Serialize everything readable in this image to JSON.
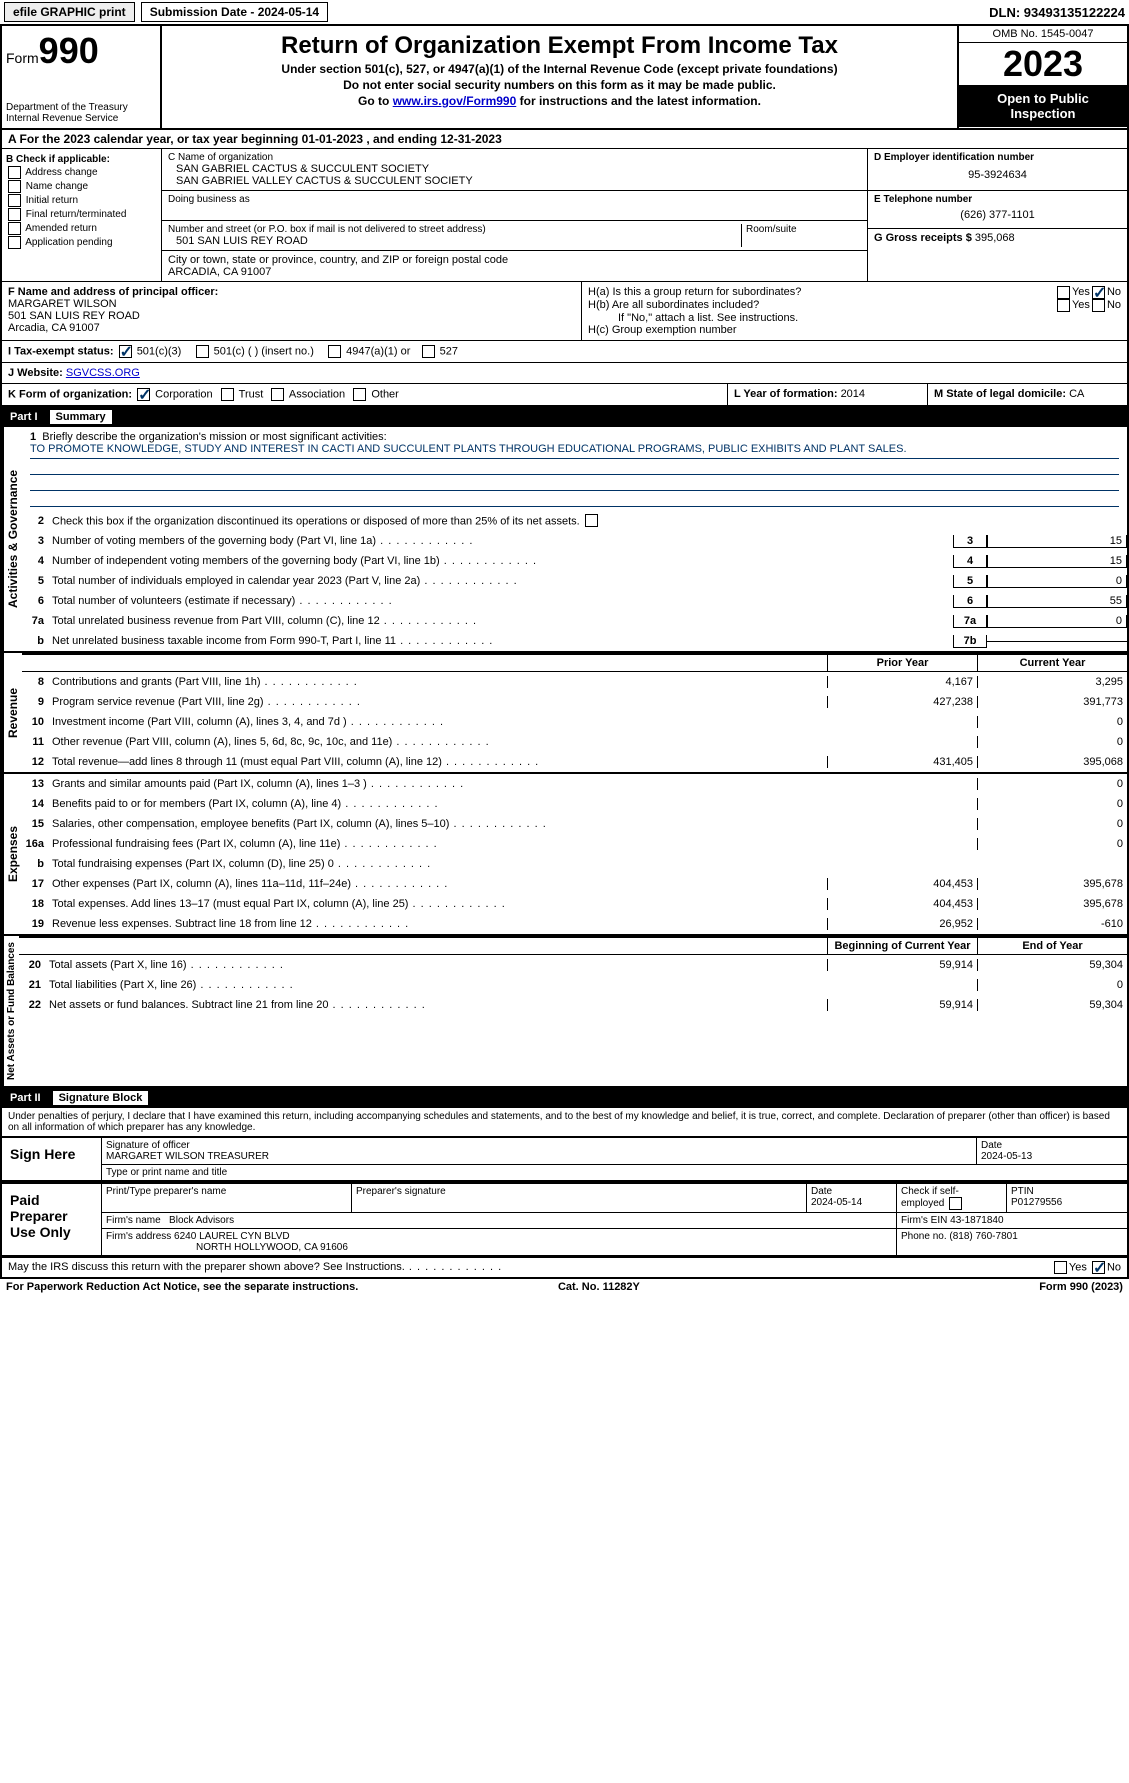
{
  "topbar": {
    "efile": "efile GRAPHIC print",
    "submission": "Submission Date - 2024-05-14",
    "dln": "DLN: 93493135122224"
  },
  "header": {
    "form_word": "Form",
    "form_num": "990",
    "dept": "Department of the Treasury\nInternal Revenue Service",
    "title": "Return of Organization Exempt From Income Tax",
    "sub1": "Under section 501(c), 527, or 4947(a)(1) of the Internal Revenue Code (except private foundations)",
    "sub2": "Do not enter social security numbers on this form as it may be made public.",
    "sub3_pre": "Go to ",
    "sub3_link": "www.irs.gov/Form990",
    "sub3_post": " for instructions and the latest information.",
    "omb": "OMB No. 1545-0047",
    "year": "2023",
    "inspect": "Open to Public Inspection"
  },
  "row_a": "A For the 2023 calendar year, or tax year beginning 01-01-2023   , and ending 12-31-2023",
  "box_b": {
    "title": "B Check if applicable:",
    "items": [
      "Address change",
      "Name change",
      "Initial return",
      "Final return/terminated",
      "Amended return",
      "Application pending"
    ]
  },
  "box_c": {
    "name_lbl": "C Name of organization",
    "name1": "SAN GABRIEL CACTUS & SUCCULENT SOCIETY",
    "name2": "SAN GABRIEL VALLEY CACTUS & SUCCULENT SOCIETY",
    "dba_lbl": "Doing business as",
    "addr_lbl": "Number and street (or P.O. box if mail is not delivered to street address)",
    "addr": "501 SAN LUIS REY ROAD",
    "room_lbl": "Room/suite",
    "city_lbl": "City or town, state or province, country, and ZIP or foreign postal code",
    "city": "ARCADIA, CA  91007"
  },
  "box_d": {
    "lbl": "D Employer identification number",
    "val": "95-3924634"
  },
  "box_e": {
    "lbl": "E Telephone number",
    "val": "(626) 377-1101"
  },
  "box_g": {
    "lbl": "G Gross receipts $ ",
    "val": "395,068"
  },
  "box_f": {
    "lbl": "F Name and address of principal officer:",
    "name": "MARGARET WILSON",
    "addr1": "501 SAN LUIS REY ROAD",
    "addr2": "Arcadia, CA  91007"
  },
  "box_h": {
    "ha": "H(a)  Is this a group return for subordinates?",
    "hb": "H(b)  Are all subordinates included?",
    "hb_note": "If \"No,\" attach a list. See instructions.",
    "hc": "H(c)  Group exemption number  ",
    "yes": "Yes",
    "no": "No"
  },
  "row_i": {
    "lbl": "I    Tax-exempt status:",
    "o1": "501(c)(3)",
    "o2": "501(c) (  ) (insert no.)",
    "o3": "4947(a)(1) or",
    "o4": "527"
  },
  "row_j": {
    "lbl": "J    Website: ",
    "val": "SGVCSS.ORG"
  },
  "row_k": {
    "lbl": "K Form of organization:",
    "o1": "Corporation",
    "o2": "Trust",
    "o3": "Association",
    "o4": "Other"
  },
  "row_l": {
    "lbl": "L Year of formation: ",
    "val": "2014"
  },
  "row_m": {
    "lbl": "M State of legal domicile: ",
    "val": "CA"
  },
  "part1": {
    "num": "Part I",
    "title": "Summary"
  },
  "summary": {
    "q1_lbl": "Briefly describe the organization's mission or most significant activities:",
    "q1_val": "TO PROMOTE KNOWLEDGE, STUDY AND INTEREST IN CACTI AND SUCCULENT PLANTS THROUGH EDUCATIONAL PROGRAMS, PUBLIC EXHIBITS AND PLANT SALES.",
    "q2": "Check this box       if the organization discontinued its operations or disposed of more than 25% of its net assets.",
    "lines_gov": [
      {
        "n": "3",
        "t": "Number of voting members of the governing body (Part VI, line 1a)",
        "cn": "3",
        "cv": "15"
      },
      {
        "n": "4",
        "t": "Number of independent voting members of the governing body (Part VI, line 1b)",
        "cn": "4",
        "cv": "15"
      },
      {
        "n": "5",
        "t": "Total number of individuals employed in calendar year 2023 (Part V, line 2a)",
        "cn": "5",
        "cv": "0"
      },
      {
        "n": "6",
        "t": "Total number of volunteers (estimate if necessary)",
        "cn": "6",
        "cv": "55"
      },
      {
        "n": "7a",
        "t": "Total unrelated business revenue from Part VIII, column (C), line 12",
        "cn": "7a",
        "cv": "0"
      },
      {
        "n": "b",
        "t": "Net unrelated business taxable income from Form 990-T, Part I, line 11",
        "cn": "7b",
        "cv": ""
      }
    ],
    "hdr_py": "Prior Year",
    "hdr_cy": "Current Year",
    "lines_rev": [
      {
        "n": "8",
        "t": "Contributions and grants (Part VIII, line 1h)",
        "py": "4,167",
        "cy": "3,295"
      },
      {
        "n": "9",
        "t": "Program service revenue (Part VIII, line 2g)",
        "py": "427,238",
        "cy": "391,773"
      },
      {
        "n": "10",
        "t": "Investment income (Part VIII, column (A), lines 3, 4, and 7d )",
        "py": "",
        "cy": "0"
      },
      {
        "n": "11",
        "t": "Other revenue (Part VIII, column (A), lines 5, 6d, 8c, 9c, 10c, and 11e)",
        "py": "",
        "cy": "0"
      },
      {
        "n": "12",
        "t": "Total revenue—add lines 8 through 11 (must equal Part VIII, column (A), line 12)",
        "py": "431,405",
        "cy": "395,068"
      }
    ],
    "lines_exp": [
      {
        "n": "13",
        "t": "Grants and similar amounts paid (Part IX, column (A), lines 1–3 )",
        "py": "",
        "cy": "0"
      },
      {
        "n": "14",
        "t": "Benefits paid to or for members (Part IX, column (A), line 4)",
        "py": "",
        "cy": "0"
      },
      {
        "n": "15",
        "t": "Salaries, other compensation, employee benefits (Part IX, column (A), lines 5–10)",
        "py": "",
        "cy": "0"
      },
      {
        "n": "16a",
        "t": "Professional fundraising fees (Part IX, column (A), line 11e)",
        "py": "",
        "cy": "0"
      },
      {
        "n": "b",
        "t": "Total fundraising expenses (Part IX, column (D), line 25) 0",
        "py": "shade",
        "cy": "shade"
      },
      {
        "n": "17",
        "t": "Other expenses (Part IX, column (A), lines 11a–11d, 11f–24e)",
        "py": "404,453",
        "cy": "395,678"
      },
      {
        "n": "18",
        "t": "Total expenses. Add lines 13–17 (must equal Part IX, column (A), line 25)",
        "py": "404,453",
        "cy": "395,678"
      },
      {
        "n": "19",
        "t": "Revenue less expenses. Subtract line 18 from line 12",
        "py": "26,952",
        "cy": "-610"
      }
    ],
    "hdr_by": "Beginning of Current Year",
    "hdr_ey": "End of Year",
    "lines_net": [
      {
        "n": "20",
        "t": "Total assets (Part X, line 16)",
        "py": "59,914",
        "cy": "59,304"
      },
      {
        "n": "21",
        "t": "Total liabilities (Part X, line 26)",
        "py": "",
        "cy": "0"
      },
      {
        "n": "22",
        "t": "Net assets or fund balances. Subtract line 21 from line 20",
        "py": "59,914",
        "cy": "59,304"
      }
    ],
    "vlabels": {
      "gov": "Activities & Governance",
      "rev": "Revenue",
      "exp": "Expenses",
      "net": "Net Assets or\nFund Balances"
    }
  },
  "part2": {
    "num": "Part II",
    "title": "Signature Block"
  },
  "sig": {
    "decl": "Under penalties of perjury, I declare that I have examined this return, including accompanying schedules and statements, and to the best of my knowledge and belief, it is true, correct, and complete. Declaration of preparer (other than officer) is based on all information of which preparer has any knowledge.",
    "sign_here": "Sign Here",
    "sig_officer_lbl": "Signature of officer",
    "sig_officer_val": "MARGARET WILSON TREASURER",
    "sig_type_lbl": "Type or print name and title",
    "sig_date": "2024-05-13",
    "date_lbl": "Date",
    "paid": "Paid Preparer Use Only",
    "prep_name_lbl": "Print/Type preparer's name",
    "prep_sig_lbl": "Preparer's signature",
    "prep_date_lbl": "Date",
    "prep_date": "2024-05-14",
    "prep_check_lbl": "Check       if self-employed",
    "ptin_lbl": "PTIN",
    "ptin": "P01279556",
    "firm_name_lbl": "Firm's name   ",
    "firm_name": "Block Advisors",
    "firm_ein_lbl": "Firm's EIN  ",
    "firm_ein": "43-1871840",
    "firm_addr_lbl": "Firm's address ",
    "firm_addr1": "6240 LAUREL CYN BLVD",
    "firm_addr2": "NORTH HOLLYWOOD, CA  91606",
    "phone_lbl": "Phone no. ",
    "phone": "(818) 760-7801",
    "discuss": "May the IRS discuss this return with the preparer shown above? See Instructions.",
    "yes": "Yes",
    "no": "No"
  },
  "footer": {
    "left": "For Paperwork Reduction Act Notice, see the separate instructions.",
    "mid": "Cat. No. 11282Y",
    "right": "Form 990 (2023)"
  }
}
